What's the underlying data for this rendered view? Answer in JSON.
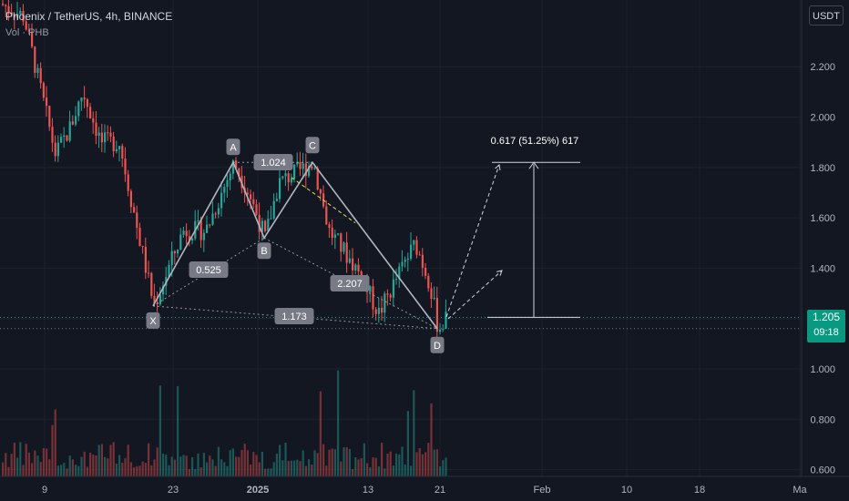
{
  "header": {
    "title": "Phoenix / TetherUS, 4h, BINANCE",
    "indicator": "Vol · PHB",
    "currency": "USDT"
  },
  "price_tag": {
    "price": "1.205",
    "countdown": "09:18",
    "color": "#089981"
  },
  "colors": {
    "background": "#131722",
    "up": "#26a69a",
    "down": "#ef5350",
    "pattern": "#b2b5be",
    "label_bg": "#787b86",
    "dashed_projection": "#d1d4dc",
    "dashed_trend": "#e0e060"
  },
  "chart_data": {
    "type": "candlestick",
    "y_ticks": [
      "2.200",
      "2.000",
      "1.800",
      "1.600",
      "1.400",
      "1.200",
      "1.000",
      "0.800",
      "0.600"
    ],
    "x_ticks": [
      "9",
      "23",
      "2025",
      "13",
      "21",
      "Feb",
      "10",
      "18",
      "Ma"
    ],
    "ylim": [
      0.57,
      2.47
    ],
    "pattern": {
      "points": [
        {
          "label": "X",
          "price": 1.25
        },
        {
          "label": "A",
          "price": 1.82
        },
        {
          "label": "B",
          "price": 1.52
        },
        {
          "label": "C",
          "price": 1.82
        },
        {
          "label": "D",
          "price": 1.16
        }
      ],
      "ratios": [
        {
          "label": "0.525",
          "between": "XA-B"
        },
        {
          "label": "1.024",
          "between": "AB-C"
        },
        {
          "label": "2.207",
          "between": "BC-D"
        },
        {
          "label": "1.173",
          "between": "XA-D"
        }
      ]
    },
    "projection": {
      "label": "0.617 (51.25%) 617",
      "from_price": 1.205,
      "to_price": 1.82
    },
    "last_price": 1.205,
    "current_price_line": 1.16
  }
}
